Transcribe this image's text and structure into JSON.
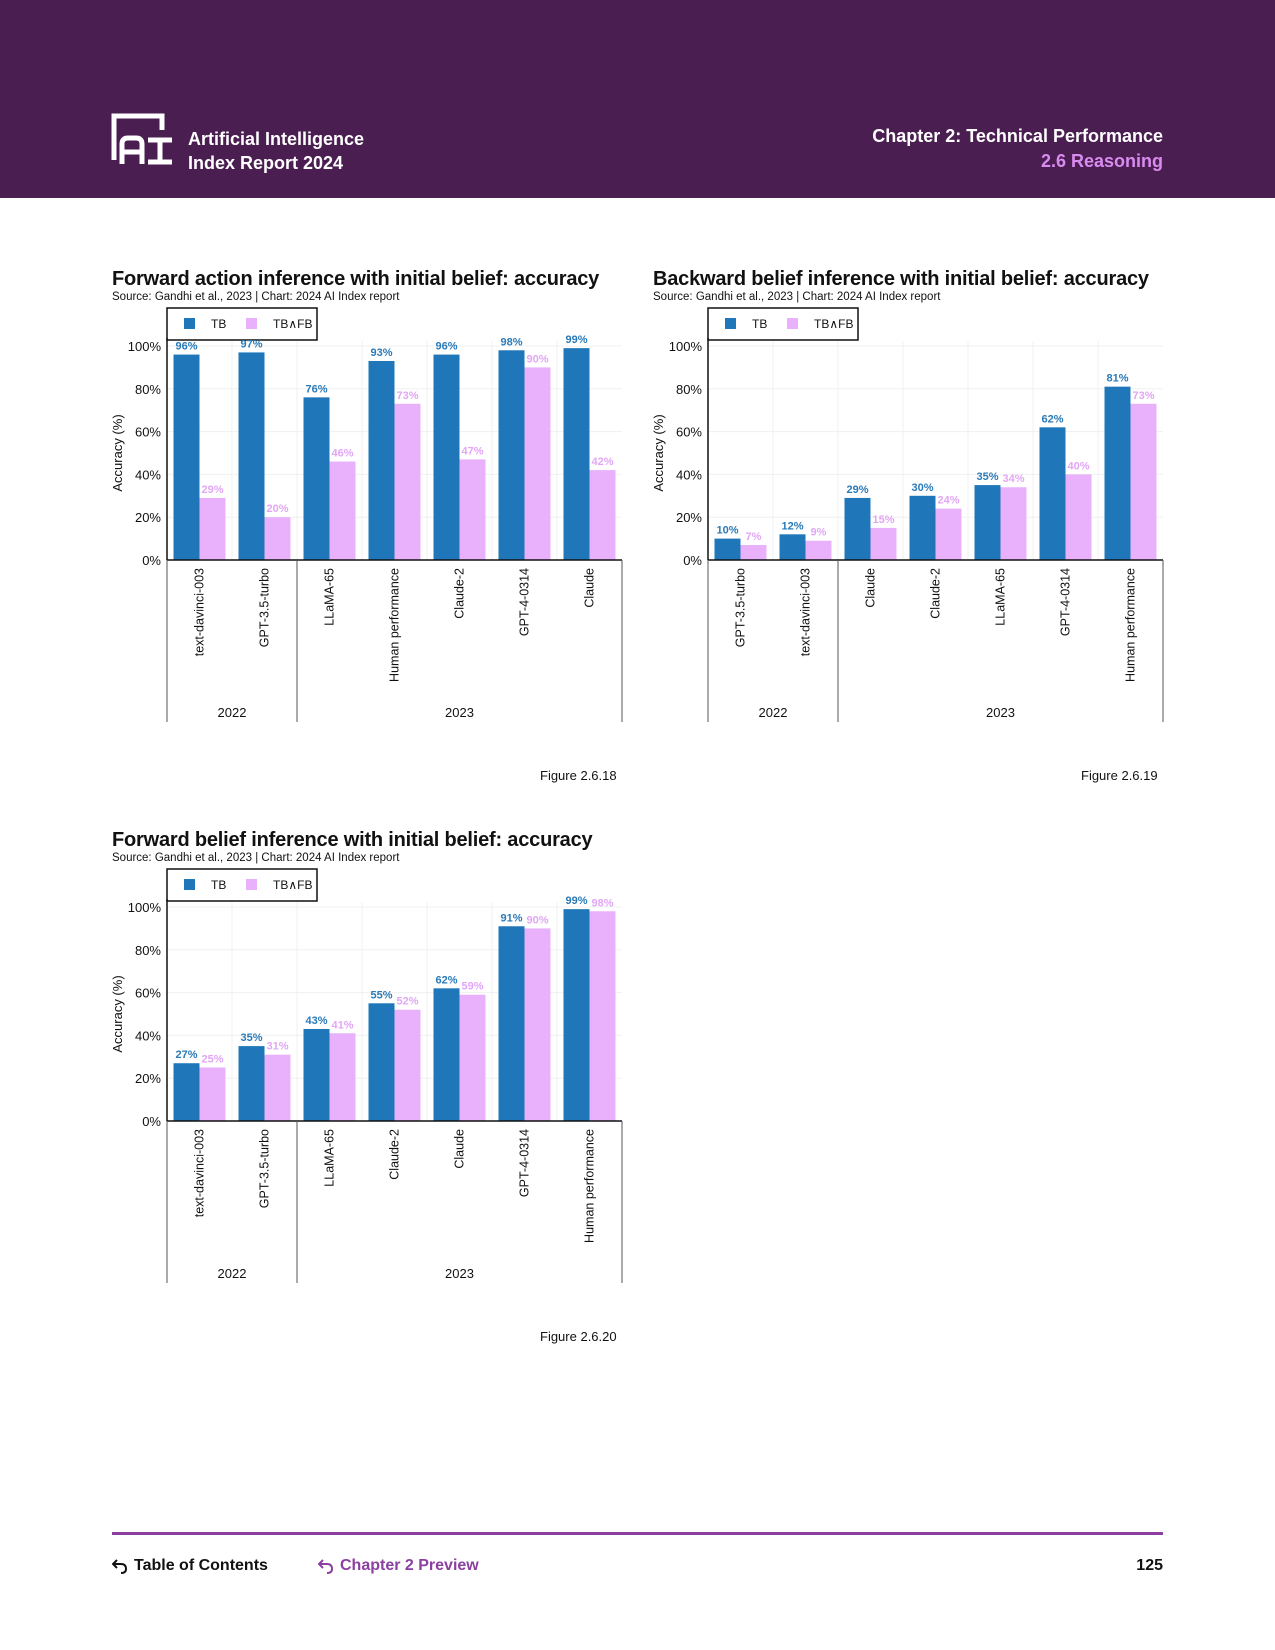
{
  "header": {
    "brand_line1": "Artificial Intelligence",
    "brand_line2": "Index Report 2024",
    "chapter": "Chapter 2: Technical Performance",
    "section": "2.6 Reasoning",
    "colors": {
      "background": "#4b1e52",
      "section": "#d98cf0"
    }
  },
  "footer": {
    "toc_label": "Table of Contents",
    "preview_label": "Chapter 2 Preview",
    "page_number": "125",
    "icon": "return-arrow-icon"
  },
  "chart_data": [
    {
      "id": "fig-2-6-18",
      "type": "bar",
      "title": "Forward action inference with initial belief: accuracy",
      "source": "Source: Gandhi et al., 2023 | Chart: 2024 AI Index report",
      "figure": "Figure 2.6.18",
      "ylabel": "Accuracy (%)",
      "xlabel": "",
      "ylim": [
        0,
        100
      ],
      "yticks": [
        "0%",
        "20%",
        "40%",
        "60%",
        "80%",
        "100%"
      ],
      "grid": true,
      "legend_position": "top-left",
      "categories": [
        "text-davinci-003",
        "GPT-3.5-turbo",
        "LLaMA-65",
        "Human performance",
        "Claude-2",
        "GPT-4-0314",
        "Claude"
      ],
      "groups": [
        {
          "label": "2022",
          "count": 2
        },
        {
          "label": "2023",
          "count": 5
        }
      ],
      "series": [
        {
          "name": "TB",
          "color": "#1f77b9",
          "label_color": "#2a7ab8",
          "values": [
            96,
            97,
            76,
            93,
            96,
            98,
            99
          ]
        },
        {
          "name": "TB∧FB",
          "color": "#e9b0fb",
          "label_color": "#e2a6f5",
          "values": [
            29,
            20,
            46,
            73,
            47,
            90,
            42
          ]
        }
      ]
    },
    {
      "id": "fig-2-6-19",
      "type": "bar",
      "title": "Backward belief inference with initial belief: accuracy",
      "source": "Source: Gandhi et al., 2023 | Chart: 2024 AI Index report",
      "figure": "Figure 2.6.19",
      "ylabel": "Accuracy (%)",
      "xlabel": "",
      "ylim": [
        0,
        100
      ],
      "yticks": [
        "0%",
        "20%",
        "40%",
        "60%",
        "80%",
        "100%"
      ],
      "grid": true,
      "legend_position": "top-left",
      "categories": [
        "GPT-3.5-turbo",
        "text-davinci-003",
        "Claude",
        "Claude-2",
        "LLaMA-65",
        "GPT-4-0314",
        "Human performance"
      ],
      "groups": [
        {
          "label": "2022",
          "count": 2
        },
        {
          "label": "2023",
          "count": 5
        }
      ],
      "series": [
        {
          "name": "TB",
          "color": "#1f77b9",
          "label_color": "#2a7ab8",
          "values": [
            10,
            12,
            29,
            30,
            35,
            62,
            81
          ]
        },
        {
          "name": "TB∧FB",
          "color": "#e9b0fb",
          "label_color": "#e2a6f5",
          "values": [
            7,
            9,
            15,
            24,
            34,
            40,
            73
          ]
        }
      ]
    },
    {
      "id": "fig-2-6-20",
      "type": "bar",
      "title": "Forward belief inference with initial belief: accuracy",
      "source": "Source: Gandhi et al., 2023 | Chart: 2024 AI Index report",
      "figure": "Figure 2.6.20",
      "ylabel": "Accuracy (%)",
      "xlabel": "",
      "ylim": [
        0,
        100
      ],
      "yticks": [
        "0%",
        "20%",
        "40%",
        "60%",
        "80%",
        "100%"
      ],
      "grid": true,
      "legend_position": "top-left",
      "categories": [
        "text-davinci-003",
        "GPT-3.5-turbo",
        "LLaMA-65",
        "Claude-2",
        "Claude",
        "GPT-4-0314",
        "Human performance"
      ],
      "groups": [
        {
          "label": "2022",
          "count": 2
        },
        {
          "label": "2023",
          "count": 5
        }
      ],
      "series": [
        {
          "name": "TB",
          "color": "#1f77b9",
          "label_color": "#2a7ab8",
          "values": [
            27,
            35,
            43,
            55,
            62,
            91,
            99
          ]
        },
        {
          "name": "TB∧FB",
          "color": "#e9b0fb",
          "label_color": "#e2a6f5",
          "values": [
            25,
            31,
            41,
            52,
            59,
            90,
            98
          ]
        }
      ]
    }
  ]
}
